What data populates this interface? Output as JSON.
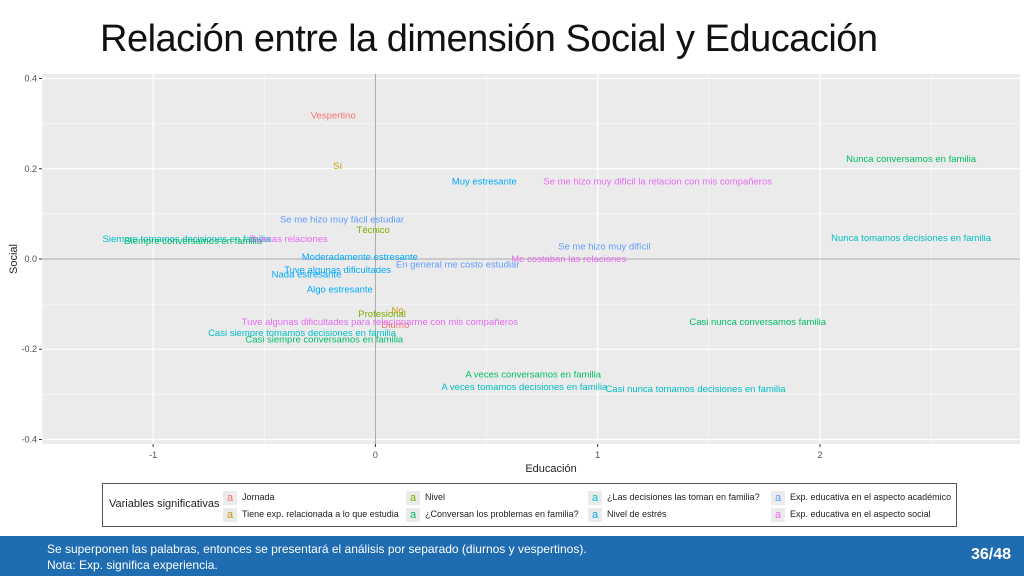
{
  "slide": {
    "title": "Relación entre la dimensión Social y Educación",
    "footer_line1": "Se superponen las palabras, entonces se presentará el análisis por separado (diurnos y vespertinos).",
    "footer_line2": "Nota: Exp. significa experiencia.",
    "page": "36/48"
  },
  "colors": {
    "jornada": "#f8766d",
    "exp_relacionada": "#cd9600",
    "nivel": "#7cae00",
    "conversan": "#00be67",
    "decisiones": "#00bfc4",
    "estres": "#00a9ff",
    "exp_academico": "#619cff",
    "exp_social": "#e76bf3",
    "panel": "#ebebeb",
    "grid": "#ffffff"
  },
  "chart_data": {
    "type": "scatter",
    "xlabel": "Educación",
    "ylabel": "Social",
    "xlim": [
      -1.5,
      2.9
    ],
    "ylim": [
      -0.41,
      0.41
    ],
    "xticks": [
      -1,
      0,
      1,
      2
    ],
    "xtick_labels": [
      "-1",
      "0",
      "1",
      "2"
    ],
    "yticks": [
      0.4,
      0.2,
      0.0,
      -0.2,
      -0.4
    ],
    "ytick_labels": [
      "0.4",
      "0.2",
      "0.0",
      "-0.2",
      "-0.4"
    ],
    "grid": true,
    "legend_position": "bottom",
    "legend": {
      "title": "Variables significativas",
      "symbol": "a",
      "entries": [
        {
          "label": "Jornada",
          "color_key": "jornada"
        },
        {
          "label": "Tiene exp. relacionada a lo que estudia",
          "color_key": "exp_relacionada"
        },
        {
          "label": "Nivel",
          "color_key": "nivel"
        },
        {
          "label": "¿Conversan los problemas en familia?",
          "color_key": "conversan"
        },
        {
          "label": "¿Las decisiones las toman en familia?",
          "color_key": "decisiones"
        },
        {
          "label": "Nivel de estrés",
          "color_key": "estres"
        },
        {
          "label": "Exp. educativa en el aspecto académico",
          "color_key": "exp_academico"
        },
        {
          "label": "Exp. educativa en el aspecto social",
          "color_key": "exp_social"
        }
      ]
    },
    "points": [
      {
        "label": "Vespertino",
        "x": -0.19,
        "y": 0.318,
        "color_key": "jornada"
      },
      {
        "label": "Sí",
        "x": -0.17,
        "y": 0.206,
        "color_key": "exp_relacionada"
      },
      {
        "label": "Nunca conversamos en familia",
        "x": 2.41,
        "y": 0.222,
        "color_key": "conversan"
      },
      {
        "label": "Muy estresante",
        "x": 0.49,
        "y": 0.172,
        "color_key": "estres"
      },
      {
        "label": "Se me hizo muy difícil la relacion con mis compañeros",
        "x": 1.27,
        "y": 0.172,
        "color_key": "exp_social"
      },
      {
        "label": "Se me hizo muy fácil estudiar",
        "x": -0.15,
        "y": 0.088,
        "color_key": "exp_academico"
      },
      {
        "label": "Técnico",
        "x": -0.01,
        "y": 0.064,
        "color_key": "nivel"
      },
      {
        "label": "Siempre tomamos decisiones en familia",
        "x": -0.85,
        "y": 0.044,
        "color_key": "decisiones"
      },
      {
        "label": "Siempre conversamos en familia",
        "x": -0.82,
        "y": 0.04,
        "color_key": "conversan"
      },
      {
        "label": "Buenas relaciones",
        "x": -0.39,
        "y": 0.044,
        "color_key": "exp_social"
      },
      {
        "label": "Nunca tomamos decisiones en familia",
        "x": 2.41,
        "y": 0.046,
        "color_key": "decisiones"
      },
      {
        "label": "Se me hizo muy difícil",
        "x": 1.03,
        "y": 0.028,
        "color_key": "exp_academico"
      },
      {
        "label": "Moderadamente estresante",
        "x": -0.07,
        "y": 0.004,
        "color_key": "estres"
      },
      {
        "label": "En general me costo estudiar",
        "x": 0.37,
        "y": -0.012,
        "color_key": "exp_academico"
      },
      {
        "label": "Me costaban las relaciones",
        "x": 0.87,
        "y": 0.0,
        "color_key": "exp_social"
      },
      {
        "label": "Tuve algunas dificultades",
        "x": -0.17,
        "y": -0.024,
        "color_key": "estres"
      },
      {
        "label": "Nada estresante",
        "x": -0.31,
        "y": -0.034,
        "color_key": "estres"
      },
      {
        "label": "Algo estresante",
        "x": -0.16,
        "y": -0.068,
        "color_key": "estres"
      },
      {
        "label": "No",
        "x": 0.1,
        "y": -0.114,
        "color_key": "exp_relacionada"
      },
      {
        "label": "Profesional",
        "x": 0.03,
        "y": -0.122,
        "color_key": "nivel"
      },
      {
        "label": "Diurno",
        "x": 0.09,
        "y": -0.146,
        "color_key": "jornada"
      },
      {
        "label": "Tuve algunas dificultades para relacionarme con mis compañeros",
        "x": 0.02,
        "y": -0.14,
        "color_key": "exp_social"
      },
      {
        "label": "Casi nunca conversamos familia",
        "x": 1.72,
        "y": -0.14,
        "color_key": "conversan"
      },
      {
        "label": "Casi siempre tomamos decisiones en familia",
        "x": -0.33,
        "y": -0.164,
        "color_key": "decisiones"
      },
      {
        "label": "Casi siempre conversamos en familia",
        "x": -0.23,
        "y": -0.178,
        "color_key": "conversan"
      },
      {
        "label": "A veces conversamos en familia",
        "x": 0.71,
        "y": -0.256,
        "color_key": "conversan"
      },
      {
        "label": "A veces tomamos decisiones en familia",
        "x": 0.67,
        "y": -0.284,
        "color_key": "decisiones"
      },
      {
        "label": "Casi nunca tomamos decisiones en familia",
        "x": 1.44,
        "y": -0.288,
        "color_key": "decisiones"
      }
    ]
  }
}
